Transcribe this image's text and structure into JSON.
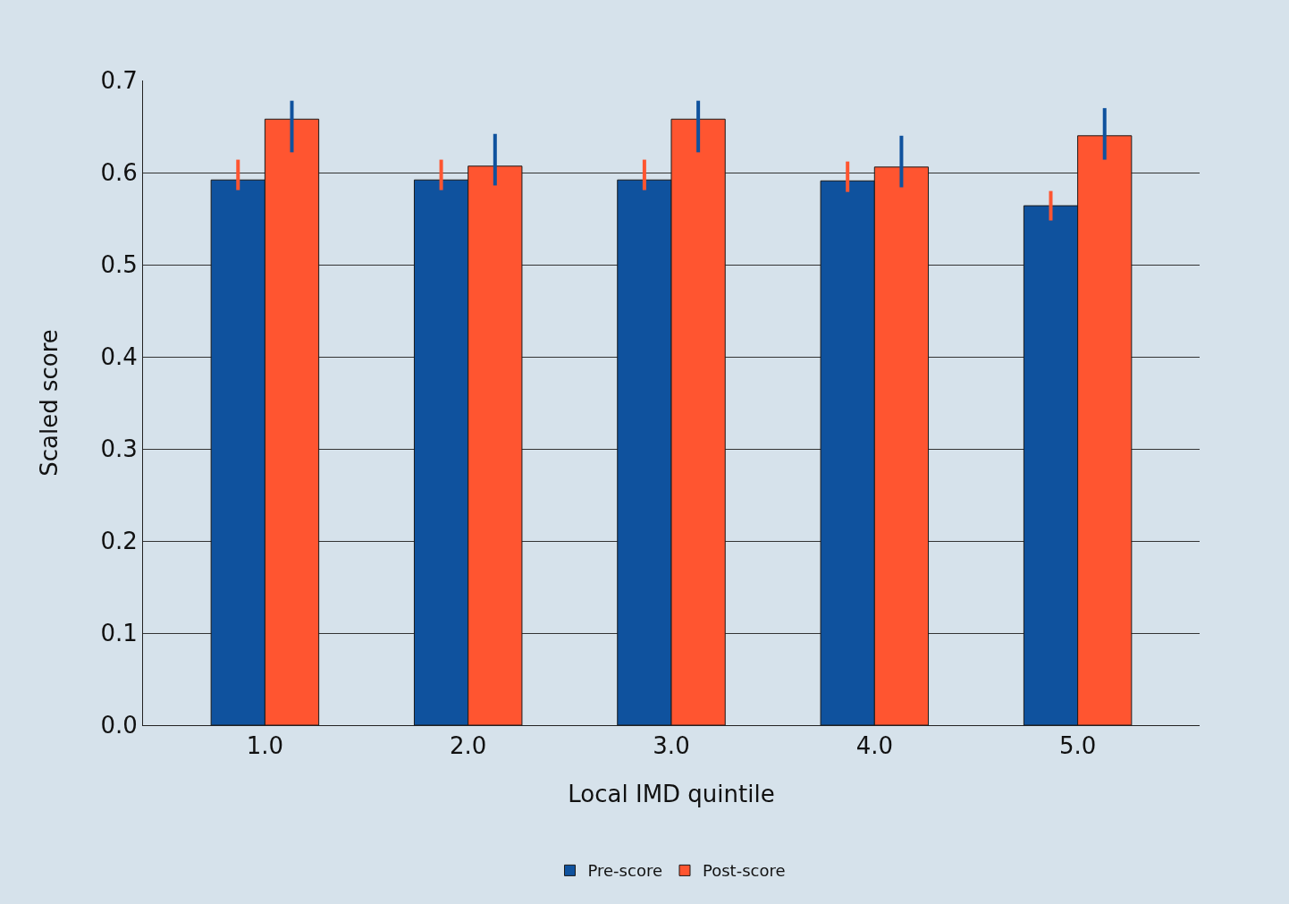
{
  "chart_data": {
    "type": "bar",
    "xlabel": "Local IMD quintile",
    "ylabel": "Scaled score",
    "categories": [
      "1.0",
      "2.0",
      "3.0",
      "4.0",
      "5.0"
    ],
    "series": [
      {
        "name": "Pre-score",
        "color": "#0f529e",
        "values": [
          0.592,
          0.592,
          0.592,
          0.591,
          0.564
        ],
        "errors": [
          [
            0.581,
            0.614
          ],
          [
            0.581,
            0.614
          ],
          [
            0.581,
            0.614
          ],
          [
            0.579,
            0.612
          ],
          [
            0.548,
            0.58
          ]
        ]
      },
      {
        "name": "Post-score",
        "color": "#ff5530",
        "values": [
          0.658,
          0.607,
          0.658,
          0.606,
          0.64
        ],
        "errors": [
          [
            0.622,
            0.678
          ],
          [
            0.586,
            0.642
          ],
          [
            0.622,
            0.678
          ],
          [
            0.584,
            0.64
          ],
          [
            0.614,
            0.67
          ]
        ]
      }
    ],
    "ylim": [
      0,
      0.7
    ],
    "yticks": [
      {
        "value": 0,
        "label": "0.0"
      },
      {
        "value": 0.1,
        "label": "0.1"
      },
      {
        "value": 0.2,
        "label": "0.2"
      },
      {
        "value": 0.3,
        "label": "0.3"
      },
      {
        "value": 0.4,
        "label": "0.4"
      },
      {
        "value": 0.5,
        "label": "0.5"
      },
      {
        "value": 0.6,
        "label": "0.6"
      },
      {
        "value": 0.7,
        "label": "0.7"
      }
    ],
    "grid": "y",
    "legend": "bottom"
  }
}
